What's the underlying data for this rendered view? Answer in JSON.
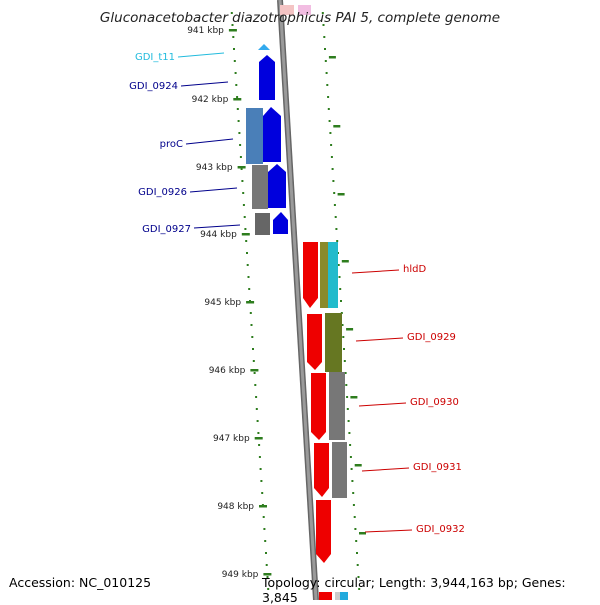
{
  "title": "Gluconacetobacter diazotrophicus PAI 5, complete genome",
  "footer": {
    "accession": "Accession: NC_010125",
    "summary": "Topology: circular; Length: 3,944,163 bp; Genes: 3,845"
  },
  "colors": {
    "backbone": "#808080",
    "tick": "#2e7d1e",
    "blue_label": "#00008b",
    "red_label": "#cc0000",
    "cyan_label": "#22bbdd"
  },
  "ticks": [
    {
      "label": "941 kbp"
    },
    {
      "label": "942 kbp"
    },
    {
      "label": "943 kbp"
    },
    {
      "label": "944 kbp"
    },
    {
      "label": "945 kbp"
    },
    {
      "label": "946 kbp"
    },
    {
      "label": "947 kbp"
    },
    {
      "label": "948 kbp"
    },
    {
      "label": "949 kbp"
    }
  ],
  "labels_left": [
    {
      "name": "GDI_t11",
      "color": "cyan"
    },
    {
      "name": "GDI_0924",
      "color": "blue"
    },
    {
      "name": "proC",
      "color": "blue"
    },
    {
      "name": "GDI_0926",
      "color": "blue"
    },
    {
      "name": "GDI_0927",
      "color": "blue"
    }
  ],
  "labels_right": [
    {
      "name": "hldD",
      "color": "red"
    },
    {
      "name": "GDI_0929",
      "color": "red"
    },
    {
      "name": "GDI_0930",
      "color": "red"
    },
    {
      "name": "GDI_0931",
      "color": "red"
    },
    {
      "name": "GDI_0932",
      "color": "red"
    }
  ]
}
